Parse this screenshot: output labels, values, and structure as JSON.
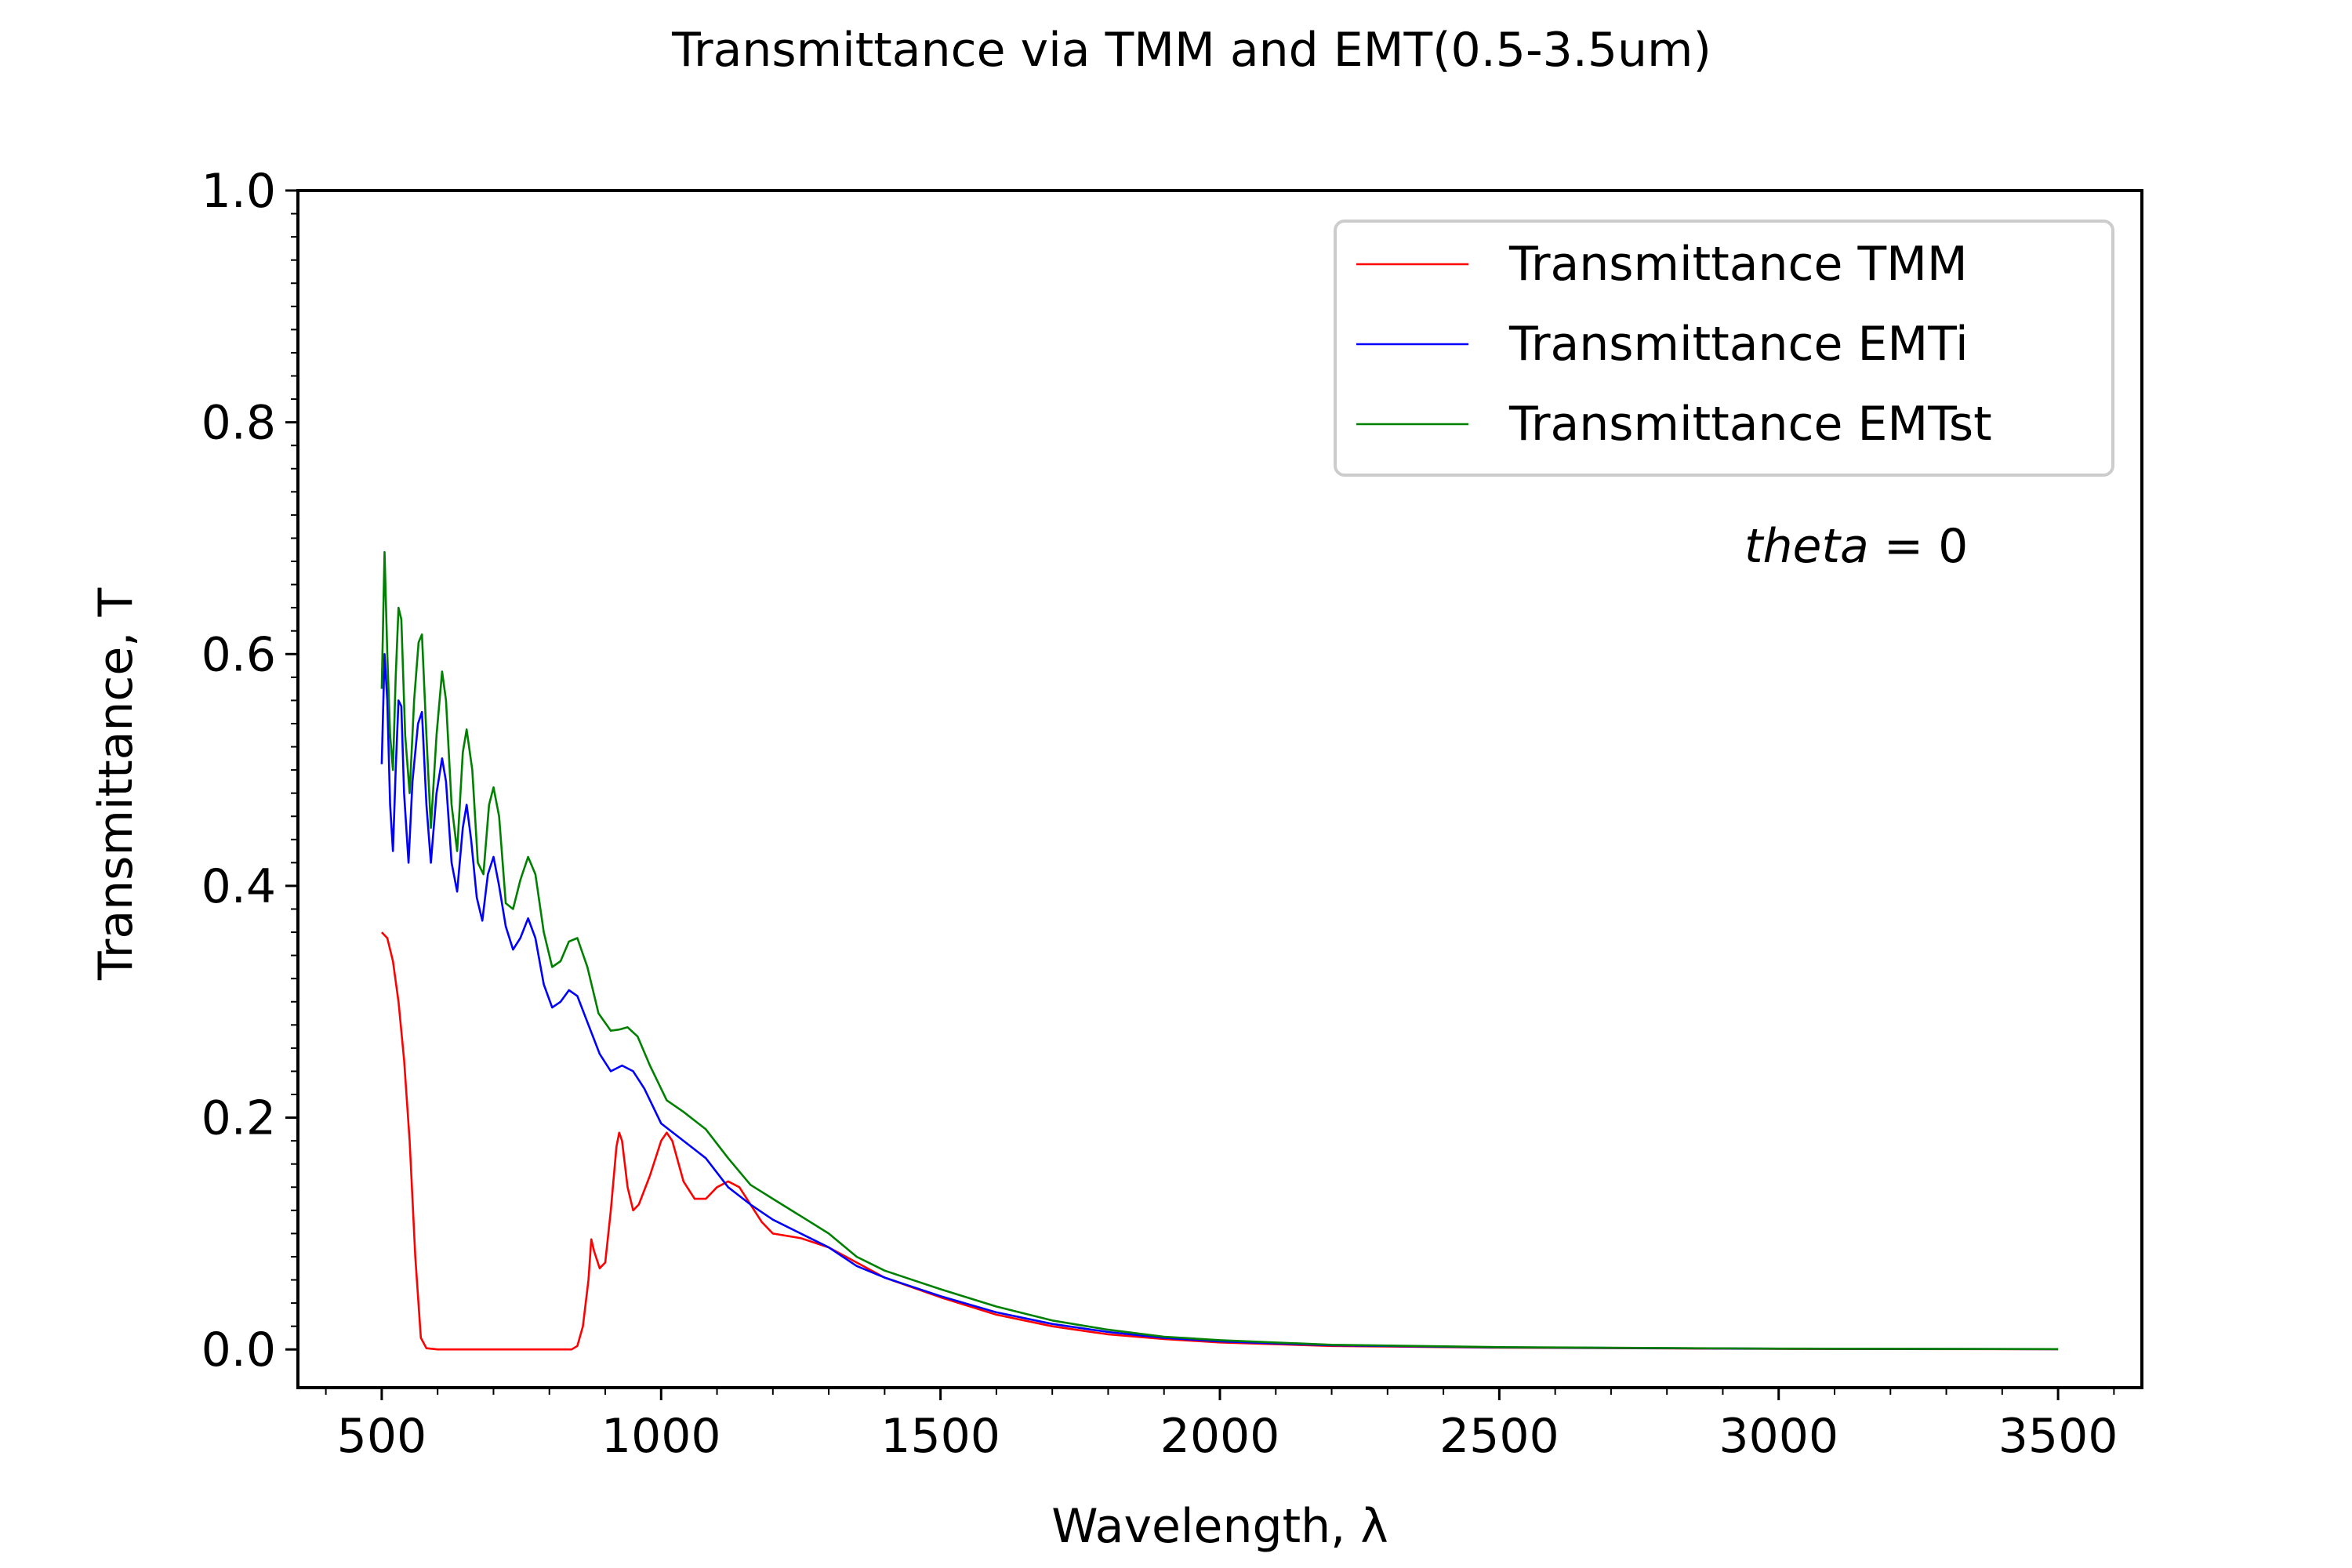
{
  "chart_data": {
    "type": "line",
    "title": "Transmittance via TMM and EMT(0.5-3.5um)",
    "xlabel": "Wavelength, λ",
    "ylabel": "Transmittance, T",
    "xlim": [
      350,
      3650
    ],
    "ylim": [
      -0.033,
      1.0
    ],
    "x_ticks": [
      500,
      1000,
      1500,
      2000,
      2500,
      3000,
      3500
    ],
    "x_tick_labels": [
      "500",
      "1000",
      "1500",
      "2000",
      "2500",
      "3000",
      "3500"
    ],
    "y_ticks": [
      0.0,
      0.2,
      0.4,
      0.6,
      0.8,
      1.0
    ],
    "y_tick_labels": [
      "0.0",
      "0.2",
      "0.4",
      "0.6",
      "0.8",
      "1.0"
    ],
    "minor_ticks": true,
    "grid": false,
    "legend_position": "top-right",
    "annotation": {
      "italic_part": "theta",
      "rest": " = 0"
    },
    "series": [
      {
        "name": "Transmittance TMM",
        "color": "#ff0000",
        "points": [
          [
            500,
            0.36
          ],
          [
            510,
            0.355
          ],
          [
            520,
            0.335
          ],
          [
            530,
            0.3
          ],
          [
            540,
            0.25
          ],
          [
            550,
            0.18
          ],
          [
            560,
            0.08
          ],
          [
            570,
            0.01
          ],
          [
            580,
            0.001
          ],
          [
            600,
            0.0
          ],
          [
            700,
            0.0
          ],
          [
            800,
            0.0
          ],
          [
            840,
            0.0
          ],
          [
            850,
            0.003
          ],
          [
            860,
            0.02
          ],
          [
            870,
            0.06
          ],
          [
            875,
            0.095
          ],
          [
            880,
            0.085
          ],
          [
            890,
            0.07
          ],
          [
            900,
            0.075
          ],
          [
            910,
            0.12
          ],
          [
            920,
            0.175
          ],
          [
            925,
            0.187
          ],
          [
            930,
            0.18
          ],
          [
            940,
            0.14
          ],
          [
            950,
            0.12
          ],
          [
            960,
            0.125
          ],
          [
            980,
            0.15
          ],
          [
            1000,
            0.18
          ],
          [
            1010,
            0.187
          ],
          [
            1020,
            0.18
          ],
          [
            1040,
            0.145
          ],
          [
            1060,
            0.13
          ],
          [
            1080,
            0.13
          ],
          [
            1100,
            0.14
          ],
          [
            1120,
            0.145
          ],
          [
            1140,
            0.14
          ],
          [
            1160,
            0.125
          ],
          [
            1180,
            0.11
          ],
          [
            1200,
            0.1
          ],
          [
            1250,
            0.096
          ],
          [
            1300,
            0.088
          ],
          [
            1400,
            0.062
          ],
          [
            1500,
            0.045
          ],
          [
            1600,
            0.03
          ],
          [
            1700,
            0.02
          ],
          [
            1800,
            0.013
          ],
          [
            1900,
            0.009
          ],
          [
            2000,
            0.006
          ],
          [
            2200,
            0.003
          ],
          [
            2500,
            0.0015
          ],
          [
            3000,
            0.0005
          ],
          [
            3500,
            0.0002
          ]
        ]
      },
      {
        "name": "Transmittance EMTi",
        "color": "#0000ff",
        "points": [
          [
            500,
            0.505
          ],
          [
            505,
            0.6
          ],
          [
            510,
            0.56
          ],
          [
            515,
            0.47
          ],
          [
            520,
            0.43
          ],
          [
            525,
            0.5
          ],
          [
            530,
            0.56
          ],
          [
            535,
            0.555
          ],
          [
            540,
            0.48
          ],
          [
            548,
            0.42
          ],
          [
            555,
            0.49
          ],
          [
            565,
            0.54
          ],
          [
            572,
            0.55
          ],
          [
            580,
            0.47
          ],
          [
            588,
            0.42
          ],
          [
            598,
            0.48
          ],
          [
            608,
            0.51
          ],
          [
            615,
            0.49
          ],
          [
            625,
            0.42
          ],
          [
            635,
            0.395
          ],
          [
            645,
            0.45
          ],
          [
            652,
            0.47
          ],
          [
            660,
            0.44
          ],
          [
            670,
            0.39
          ],
          [
            680,
            0.37
          ],
          [
            690,
            0.41
          ],
          [
            700,
            0.425
          ],
          [
            710,
            0.4
          ],
          [
            722,
            0.365
          ],
          [
            735,
            0.345
          ],
          [
            748,
            0.355
          ],
          [
            762,
            0.372
          ],
          [
            775,
            0.355
          ],
          [
            790,
            0.315
          ],
          [
            805,
            0.295
          ],
          [
            820,
            0.3
          ],
          [
            835,
            0.31
          ],
          [
            850,
            0.305
          ],
          [
            870,
            0.28
          ],
          [
            890,
            0.255
          ],
          [
            910,
            0.24
          ],
          [
            930,
            0.245
          ],
          [
            950,
            0.24
          ],
          [
            970,
            0.225
          ],
          [
            1000,
            0.195
          ],
          [
            1040,
            0.18
          ],
          [
            1080,
            0.165
          ],
          [
            1120,
            0.14
          ],
          [
            1160,
            0.125
          ],
          [
            1200,
            0.112
          ],
          [
            1250,
            0.1
          ],
          [
            1300,
            0.088
          ],
          [
            1350,
            0.072
          ],
          [
            1400,
            0.062
          ],
          [
            1500,
            0.046
          ],
          [
            1600,
            0.032
          ],
          [
            1700,
            0.022
          ],
          [
            1800,
            0.015
          ],
          [
            1900,
            0.01
          ],
          [
            2000,
            0.007
          ],
          [
            2200,
            0.0035
          ],
          [
            2500,
            0.0018
          ],
          [
            3000,
            0.0006
          ],
          [
            3500,
            0.0003
          ]
        ]
      },
      {
        "name": "Transmittance EMTst",
        "color": "#008000",
        "points": [
          [
            500,
            0.57
          ],
          [
            505,
            0.688
          ],
          [
            510,
            0.6
          ],
          [
            515,
            0.53
          ],
          [
            520,
            0.5
          ],
          [
            525,
            0.58
          ],
          [
            530,
            0.64
          ],
          [
            535,
            0.63
          ],
          [
            542,
            0.53
          ],
          [
            550,
            0.48
          ],
          [
            558,
            0.56
          ],
          [
            566,
            0.61
          ],
          [
            572,
            0.617
          ],
          [
            580,
            0.53
          ],
          [
            588,
            0.45
          ],
          [
            598,
            0.53
          ],
          [
            608,
            0.585
          ],
          [
            615,
            0.56
          ],
          [
            625,
            0.47
          ],
          [
            635,
            0.43
          ],
          [
            645,
            0.515
          ],
          [
            652,
            0.535
          ],
          [
            662,
            0.5
          ],
          [
            672,
            0.42
          ],
          [
            682,
            0.41
          ],
          [
            692,
            0.47
          ],
          [
            700,
            0.485
          ],
          [
            710,
            0.46
          ],
          [
            722,
            0.385
          ],
          [
            735,
            0.38
          ],
          [
            748,
            0.405
          ],
          [
            762,
            0.425
          ],
          [
            775,
            0.41
          ],
          [
            790,
            0.36
          ],
          [
            805,
            0.33
          ],
          [
            820,
            0.335
          ],
          [
            835,
            0.352
          ],
          [
            850,
            0.355
          ],
          [
            868,
            0.33
          ],
          [
            888,
            0.29
          ],
          [
            910,
            0.275
          ],
          [
            925,
            0.276
          ],
          [
            940,
            0.278
          ],
          [
            958,
            0.27
          ],
          [
            980,
            0.245
          ],
          [
            1010,
            0.215
          ],
          [
            1040,
            0.205
          ],
          [
            1080,
            0.19
          ],
          [
            1120,
            0.165
          ],
          [
            1160,
            0.142
          ],
          [
            1200,
            0.13
          ],
          [
            1250,
            0.115
          ],
          [
            1300,
            0.1
          ],
          [
            1350,
            0.08
          ],
          [
            1400,
            0.068
          ],
          [
            1500,
            0.052
          ],
          [
            1600,
            0.037
          ],
          [
            1700,
            0.025
          ],
          [
            1800,
            0.017
          ],
          [
            1900,
            0.011
          ],
          [
            2000,
            0.008
          ],
          [
            2200,
            0.004
          ],
          [
            2500,
            0.002
          ],
          [
            3000,
            0.0007
          ],
          [
            3500,
            0.0003
          ]
        ]
      }
    ]
  }
}
